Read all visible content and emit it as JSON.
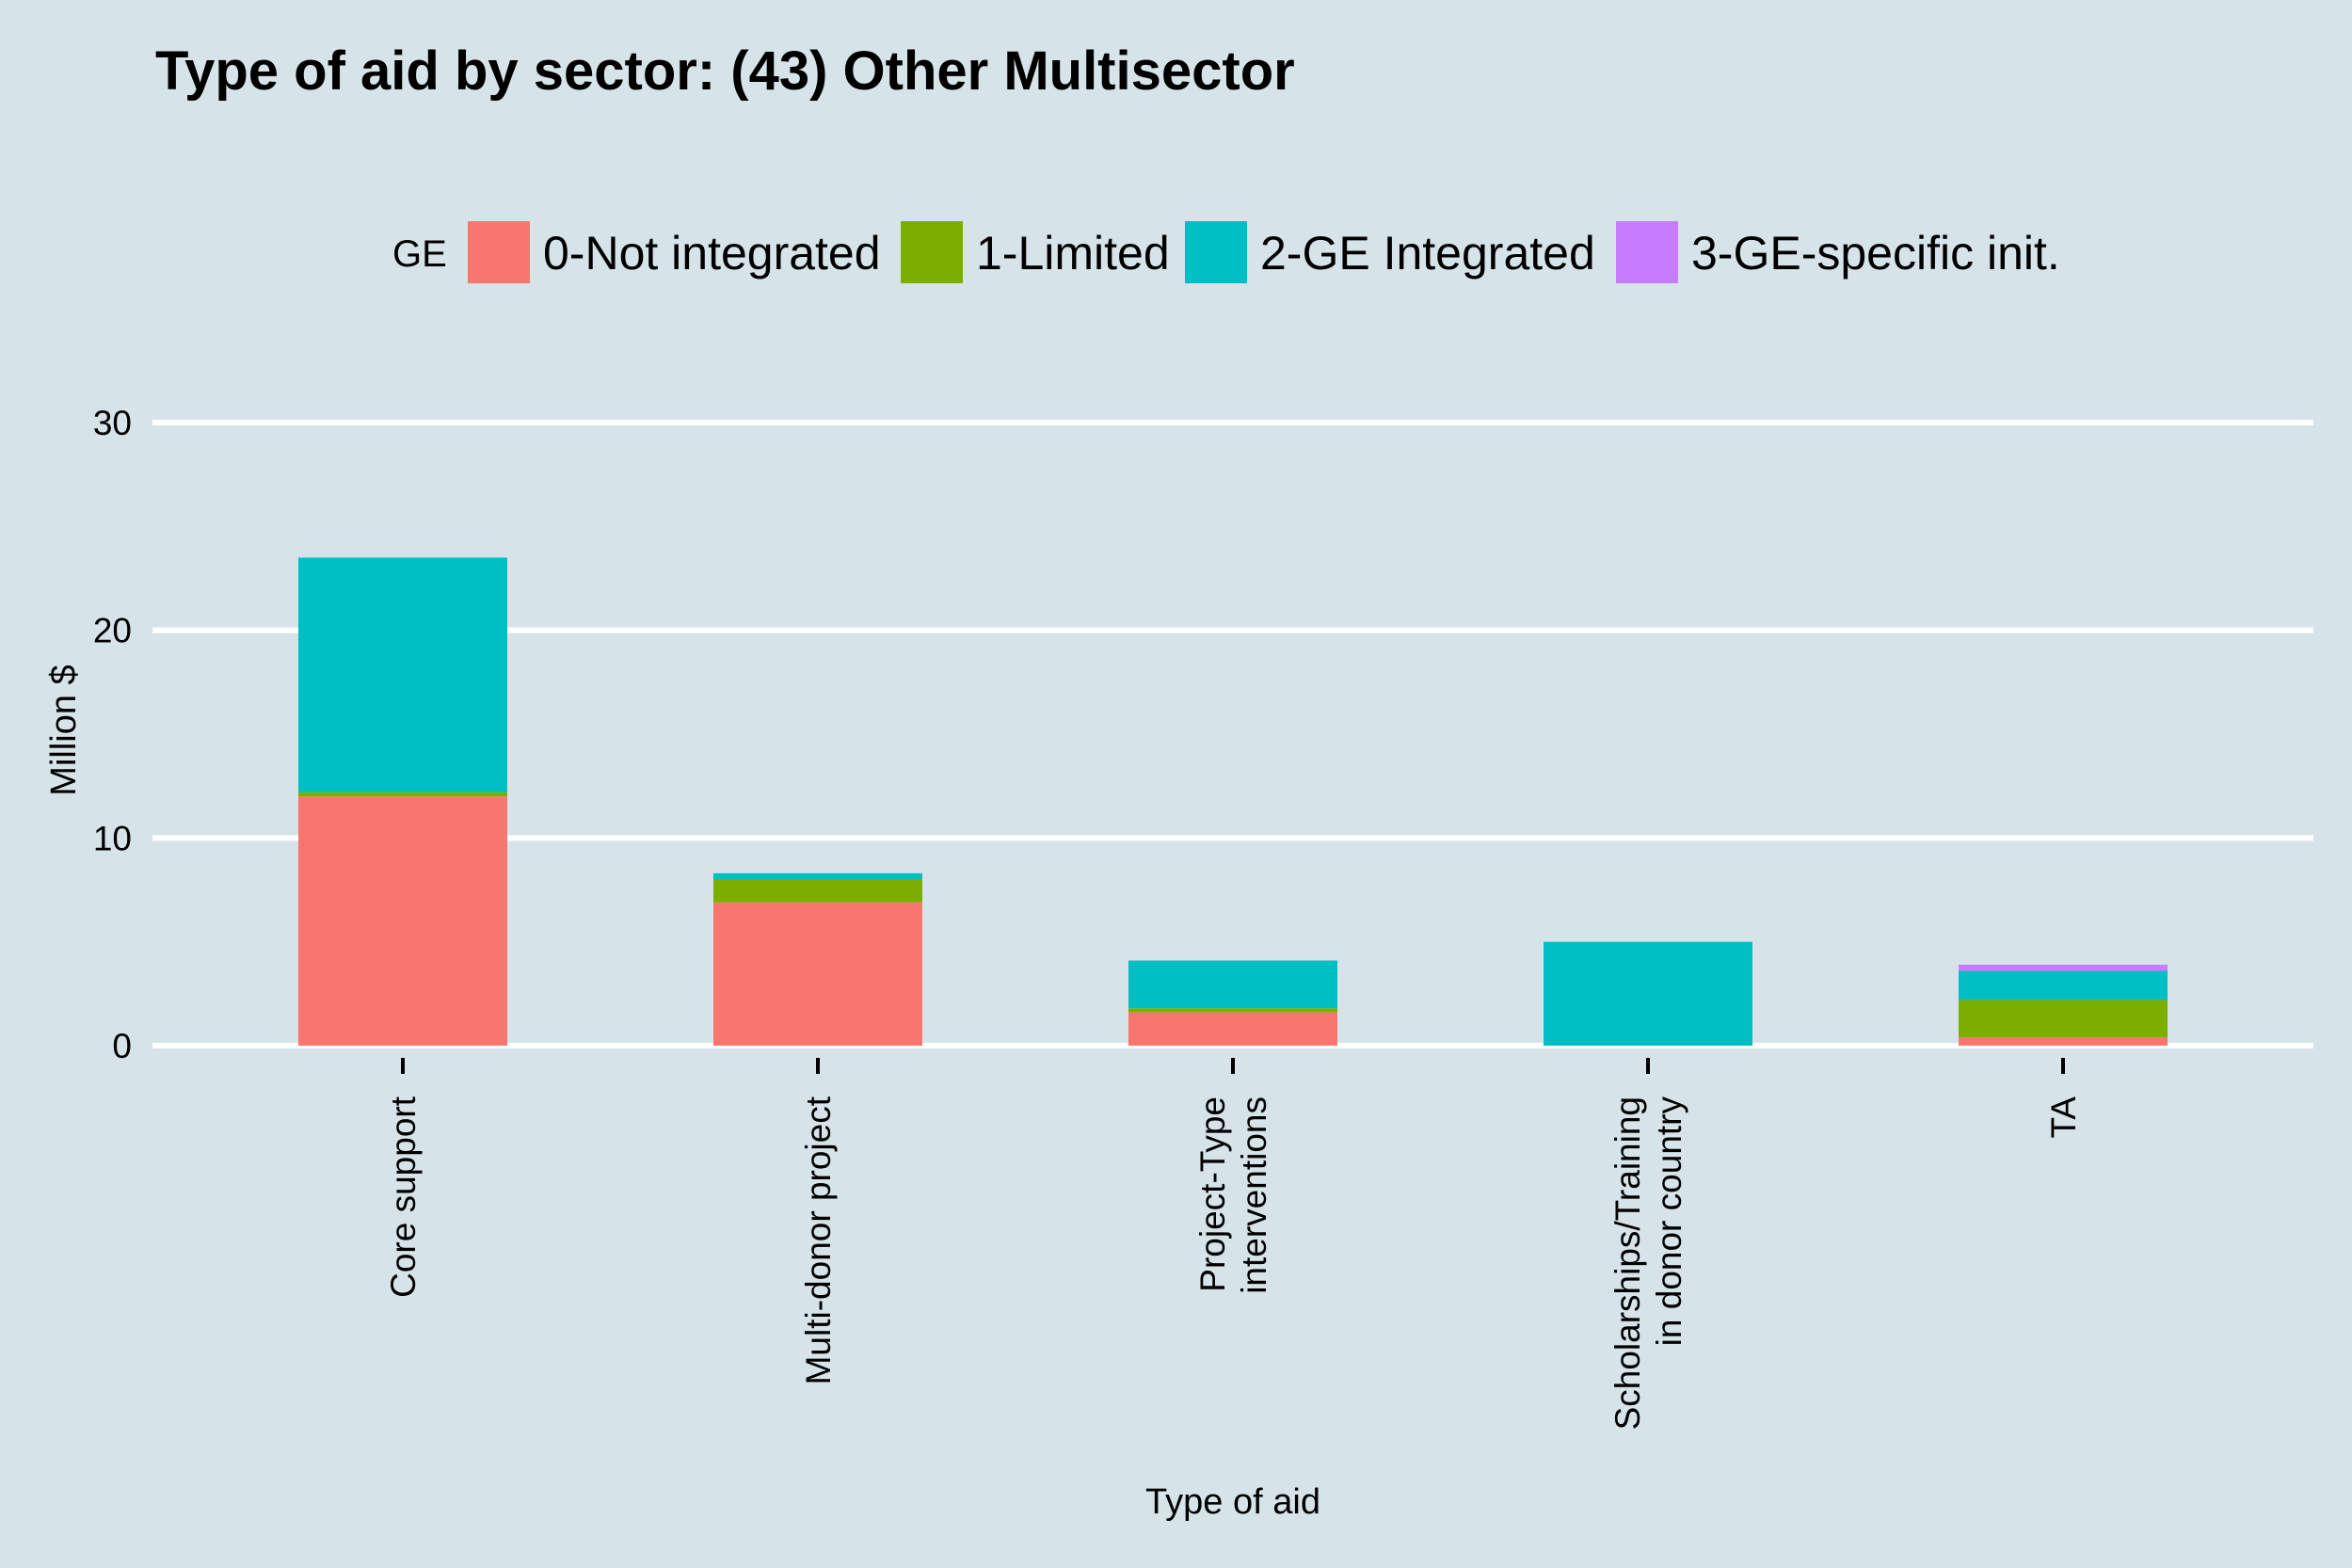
{
  "chart_data": {
    "type": "bar",
    "stacked": true,
    "title": "Type of aid by sector:  (43) Other Multisector",
    "xlabel": "Type of aid",
    "ylabel": "Million $",
    "ylim": [
      0,
      30
    ],
    "yticks": [
      0,
      10,
      20,
      30
    ],
    "grid": true,
    "legend": {
      "title": "GE",
      "position": "top"
    },
    "categories": [
      [
        "Core support"
      ],
      [
        "Multi-donor project"
      ],
      [
        "Project-Type",
        "interventions"
      ],
      [
        "Scholarships/Training",
        "in donor country"
      ],
      [
        "TA"
      ]
    ],
    "series": [
      {
        "name": "0-Not integrated",
        "color": "#f8766d",
        "values": [
          12.0,
          6.9,
          1.6,
          0.0,
          0.4
        ]
      },
      {
        "name": "1-Limited",
        "color": "#7cae00",
        "values": [
          0.2,
          1.1,
          0.2,
          0.0,
          1.8
        ]
      },
      {
        "name": "2-GE Integrated",
        "color": "#00bfc4",
        "values": [
          11.3,
          0.3,
          2.3,
          5.0,
          1.4
        ]
      },
      {
        "name": "3-GE-specific init.",
        "color": "#c77cff",
        "values": [
          0.0,
          0.0,
          0.0,
          0.0,
          0.3
        ]
      }
    ]
  }
}
